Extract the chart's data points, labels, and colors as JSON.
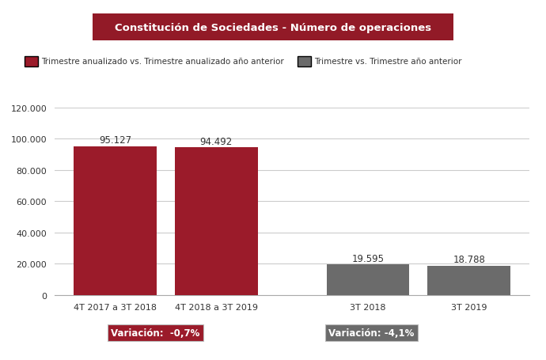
{
  "title": "Constitución de Sociedades - Número de operaciones",
  "title_bg": "#921A27",
  "title_color": "#ffffff",
  "categories": [
    "4T 2017 a 3T 2018",
    "4T 2018 a 3T 2019",
    "3T 2018",
    "3T 2019"
  ],
  "values": [
    95127,
    94492,
    19595,
    18788
  ],
  "bar_colors": [
    "#9B1B2A",
    "#9B1B2A",
    "#6B6B6B",
    "#6B6B6B"
  ],
  "bar_labels": [
    "95.127",
    "94.492",
    "19.595",
    "18.788"
  ],
  "ylim": [
    0,
    120000
  ],
  "yticks": [
    0,
    20000,
    40000,
    60000,
    80000,
    100000,
    120000
  ],
  "ytick_labels": [
    "0",
    "20.000",
    "40.000",
    "60.000",
    "80.000",
    "100.000",
    "120.000"
  ],
  "legend_labels": [
    "Trimestre anualizado vs. Trimestre anualizado año anterior",
    "Trimestre vs. Trimestre año anterior"
  ],
  "legend_colors": [
    "#9B1B2A",
    "#6B6B6B"
  ],
  "variacion_labels": [
    "Variación:  -0,7%",
    "Variación: -4,1%"
  ],
  "variacion_bg": [
    "#9B1B2A",
    "#6B6B6B"
  ],
  "variacion_color": "#ffffff",
  "bg_color": "#ffffff",
  "grid_color": "#cccccc"
}
